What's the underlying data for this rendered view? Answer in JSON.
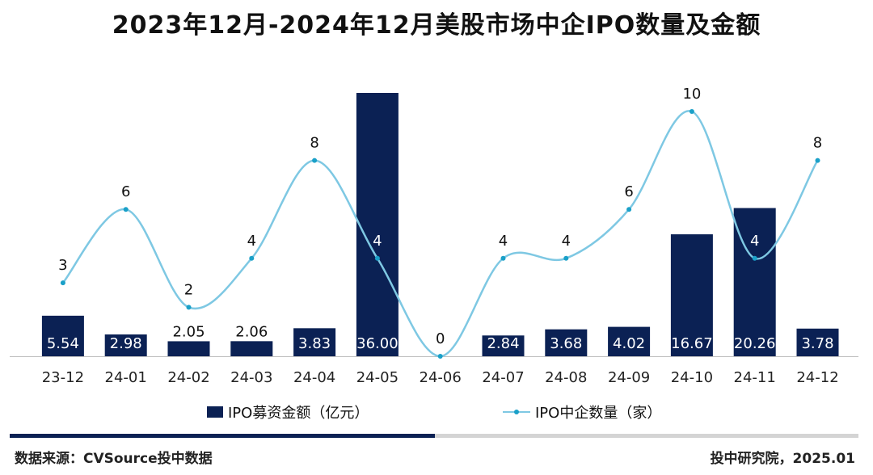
{
  "footer": {
    "source": "数据来源：CVSource投中数据",
    "credit": "投中研究院，2025.01"
  },
  "colors": {
    "bar": "#0b2154",
    "line": "#7ec8e3",
    "marker": "#1aa0c8",
    "axis": "#bfbfbf"
  },
  "chart_data": {
    "type": "bar",
    "title": "2023年12月-2024年12月美股市场中企IPO数量及金额",
    "categories": [
      "23-12",
      "24-01",
      "24-02",
      "24-03",
      "24-04",
      "24-05",
      "24-06",
      "24-07",
      "24-08",
      "24-09",
      "24-10",
      "24-11",
      "24-12"
    ],
    "series": [
      {
        "name": "IPO募资金额（亿元）",
        "type": "bar",
        "values": [
          5.54,
          2.98,
          2.05,
          2.06,
          3.83,
          36.0,
          0,
          2.84,
          3.68,
          4.02,
          16.67,
          20.26,
          3.78
        ],
        "labels": [
          "5.54",
          "2.98",
          "2.05",
          "2.06",
          "3.83",
          "36.00",
          "",
          "2.84",
          "3.68",
          "4.02",
          "16.67",
          "20.26",
          "3.78"
        ]
      },
      {
        "name": "IPO中企数量（家）",
        "type": "line",
        "values": [
          3,
          6,
          2,
          4,
          8,
          4,
          0,
          4,
          4,
          6,
          10,
          4,
          8
        ],
        "labels": [
          "3",
          "6",
          "2",
          "4",
          "8",
          "4",
          "0",
          "4",
          "4",
          "6",
          "10",
          "4",
          "8"
        ]
      }
    ],
    "bar_ylim": [
      0,
      36
    ],
    "line_ylim": [
      0,
      10
    ],
    "grid": false,
    "legend": "bottom"
  }
}
